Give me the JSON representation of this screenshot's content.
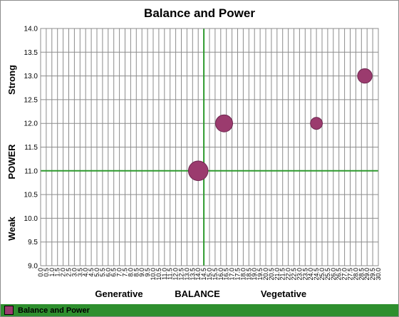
{
  "chart_data": {
    "type": "scatter",
    "title": "Balance and Power",
    "y_label_top": "Strong",
    "y_label_mid": "POWER",
    "y_label_bottom": "Weak",
    "x_label_left": "Generative",
    "x_label_mid": "BALANCE",
    "x_label_right": "Vegetative",
    "xlim": [
      0,
      30
    ],
    "x_step": 0.5,
    "x_tick_decimals": 1,
    "ylim": [
      9.0,
      14.0
    ],
    "y_step": 0.5,
    "y_tick_decimals": 1,
    "reference_lines": {
      "x": 14.5,
      "y": 11.0
    },
    "series": [
      {
        "name": "Balance and Power",
        "points": [
          {
            "x": 14.0,
            "y": 11.0,
            "size": 3
          },
          {
            "x": 16.3,
            "y": 12.0,
            "size": 2.5
          },
          {
            "x": 24.5,
            "y": 12.0,
            "size": 1.5
          },
          {
            "x": 28.8,
            "y": 13.0,
            "size": 2
          }
        ]
      }
    ],
    "grid": true,
    "legend_position": "bottom"
  },
  "colors": {
    "point": "#9b3b6e",
    "reference_line": "#2e9a2e",
    "grid": "#8c8c8c",
    "legend_bar": "#2e8f2e"
  }
}
